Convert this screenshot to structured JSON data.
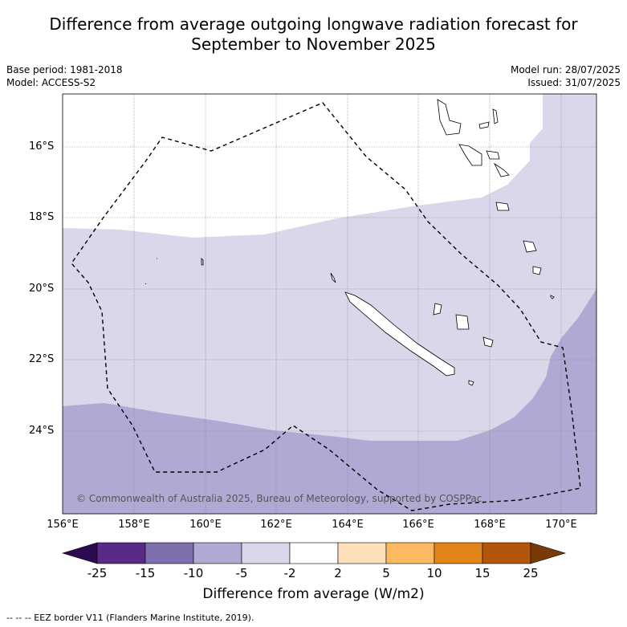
{
  "title_line1": "Difference from average outgoing longwave radiation forecast for",
  "title_line2": "September to November 2025",
  "base_period": "Base period: 1981-2018",
  "model": "Model: ACCESS-S2",
  "model_run": "Model run: 28/07/2025",
  "issued": "Issued: 31/07/2025",
  "copyright": "© Commonwealth of Australia 2025, Bureau of Meteorology, supported by COSPPac",
  "lat_labels": [
    "16°S",
    "18°S",
    "20°S",
    "22°S",
    "24°S"
  ],
  "lon_labels": [
    "156°E",
    "158°E",
    "160°E",
    "162°E",
    "164°E",
    "166°E",
    "168°E",
    "170°E"
  ],
  "colorbar": {
    "title": "Difference from average (W/m2)",
    "ticks": [
      "-25",
      "-15",
      "-10",
      "-5",
      "-2",
      "2",
      "5",
      "10",
      "15",
      "25"
    ],
    "colors": [
      "#5a2a8a",
      "#7f70ad",
      "#b0a9d3",
      "#d8d8ea",
      "#ffffff",
      "#fde0b8",
      "#fdb962",
      "#e38419",
      "#b3560a"
    ],
    "min_extend_color": "#2d0a50",
    "max_extend_color": "#7a3a05"
  },
  "map_fill_colors": {
    "band_minus5_to_minus2": "#d8d8ea",
    "band_minus10_to_minus5": "#b0a9d3",
    "neutral": "#ffffff"
  },
  "footnote": "--  --  -- EEZ border V11 (Flanders Marine Institute, 2019)."
}
